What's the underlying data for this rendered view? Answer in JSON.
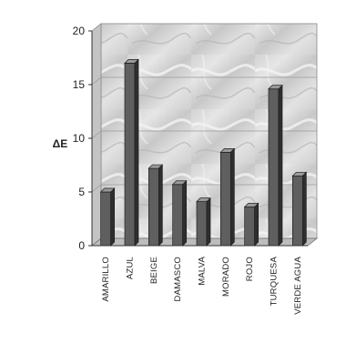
{
  "chart_data": {
    "type": "bar",
    "ylabel": "ΔE",
    "ylim": [
      0,
      20
    ],
    "yticks": [
      "0",
      "5",
      "10",
      "15",
      "20"
    ],
    "grid": true,
    "categories": [
      "AMARILLO",
      "AZUL",
      "BEIGE",
      "DAMASCO",
      "MALVA",
      "MORADO",
      "ROJO",
      "TURQUESA",
      "VERDE AGUA"
    ],
    "values": [
      5.0,
      17.0,
      7.2,
      5.7,
      4.1,
      8.7,
      3.6,
      14.6,
      6.5
    ],
    "colors": {
      "bar_front": "#5f5f5f",
      "bar_side": "#2e2e2e",
      "bar_top": "#9a9a9a",
      "wall": "#d6d6d6",
      "floor": "#bdbdbd",
      "axis": "#333333"
    }
  }
}
